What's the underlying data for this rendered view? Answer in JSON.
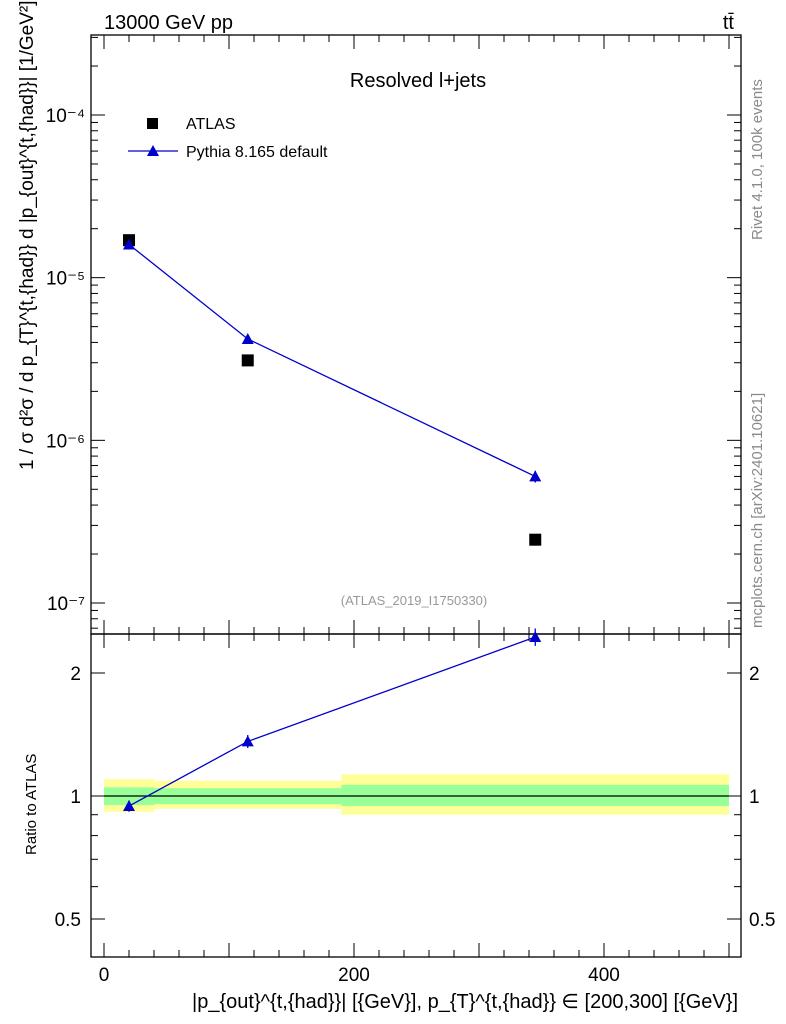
{
  "header": {
    "energy_label": "13000 GeV pp",
    "process_label": "tt̄"
  },
  "side_labels": {
    "rivet": "Rivet 4.1.0,  100k events",
    "source": "mcplots.cern.ch [arXiv:2401.10621]"
  },
  "chart_data": [
    {
      "type": "scatter",
      "panel": "main",
      "title": "Resolved l+jets",
      "analysis_id": "(ATLAS_2019_I1750330)",
      "ylabel": "1 / σ d²σ / d p_{T}^{t,{had}} d |p_{out}^{t,{had}}| [1/GeV²]",
      "yscale": "log",
      "ylim": [
        6.5e-08,
        0.00032
      ],
      "xlim": [
        -15,
        510
      ],
      "ytick_labels": [
        "10⁻⁷",
        "10⁻⁶",
        "10⁻⁵",
        "10⁻⁴"
      ],
      "ytick_values": [
        1e-07,
        1e-06,
        1e-05,
        0.0001
      ],
      "legend": [
        "ATLAS",
        "Pythia 8.165 default"
      ],
      "legend_position": "top-left",
      "series": [
        {
          "name": "ATLAS",
          "marker": "square",
          "color": "#000000",
          "x": [
            20,
            115,
            345
          ],
          "y": [
            1.7e-05,
            3.1e-06,
            2.45e-07
          ]
        },
        {
          "name": "Pythia 8.165 default",
          "marker": "triangle",
          "color": "#0000cc",
          "x": [
            20,
            115,
            345
          ],
          "y": [
            1.6e-05,
            4.2e-06,
            6e-07
          ],
          "yerr": [
            0,
            0,
            5e-08
          ]
        }
      ]
    },
    {
      "type": "line",
      "panel": "ratio",
      "ylabel": "Ratio to ATLAS",
      "yscale": "log",
      "ylim": [
        0.4,
        2.5
      ],
      "ytick_labels": [
        "0.5",
        "1",
        "2"
      ],
      "ytick_values": [
        0.5,
        1,
        2
      ],
      "xlabel": "|p_{out}^{t,{had}}| [{GeV}], p_{T}^{t,{had}} ∈ [200,300] [{GeV}]",
      "xtick_labels": [
        "0",
        "200",
        "400"
      ],
      "xtick_values": [
        0,
        200,
        400
      ],
      "bands": [
        {
          "x0": 0,
          "x1": 40,
          "inner": [
            0.95,
            1.05
          ],
          "outer": [
            0.915,
            1.1
          ]
        },
        {
          "x0": 40,
          "x1": 190,
          "inner": [
            0.955,
            1.045
          ],
          "outer": [
            0.93,
            1.09
          ]
        },
        {
          "x0": 190,
          "x1": 500,
          "inner": [
            0.945,
            1.065
          ],
          "outer": [
            0.9,
            1.13
          ]
        }
      ],
      "series": [
        {
          "name": "Pythia 8.165 default",
          "color": "#0000cc",
          "x": [
            20,
            115,
            345
          ],
          "y": [
            0.945,
            1.36,
            2.45
          ],
          "yerr": [
            0.03,
            0.05,
            0.12
          ]
        }
      ]
    }
  ]
}
